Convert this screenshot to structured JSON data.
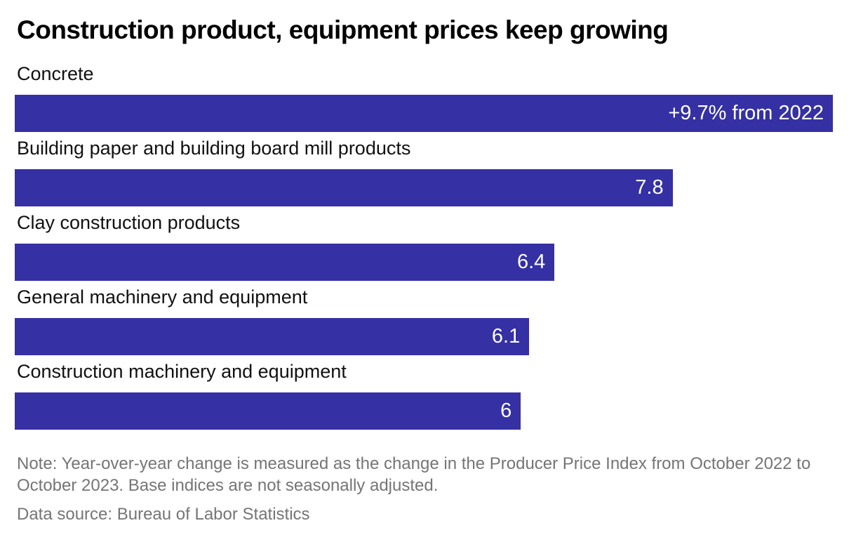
{
  "chart_data": {
    "type": "bar",
    "orientation": "horizontal",
    "title": "Construction product, equipment prices keep growing",
    "categories": [
      "Concrete",
      "Building paper and building board mill products",
      "Clay construction products",
      "General machinery and equipment",
      "Construction machinery and equipment"
    ],
    "values": [
      9.7,
      7.8,
      6.4,
      6.1,
      6
    ],
    "bar_labels": [
      "+9.7% from 2022",
      "7.8",
      "6.4",
      "6.1",
      "6"
    ],
    "xlim": [
      0,
      9.7
    ],
    "xlabel": "",
    "ylabel": "",
    "grid": false,
    "legend": false,
    "bar_color": "#3530A3",
    "bar_value_text_color": "#ffffff",
    "title_color": "#000000",
    "note_color": "#757575",
    "note": "Note: Year-over-year change is measured as the change in the Producer Price Index from October 2022 to October 2023. Base indices are not seasonally adjusted.",
    "source": "Data source: Bureau of Labor Statistics"
  }
}
